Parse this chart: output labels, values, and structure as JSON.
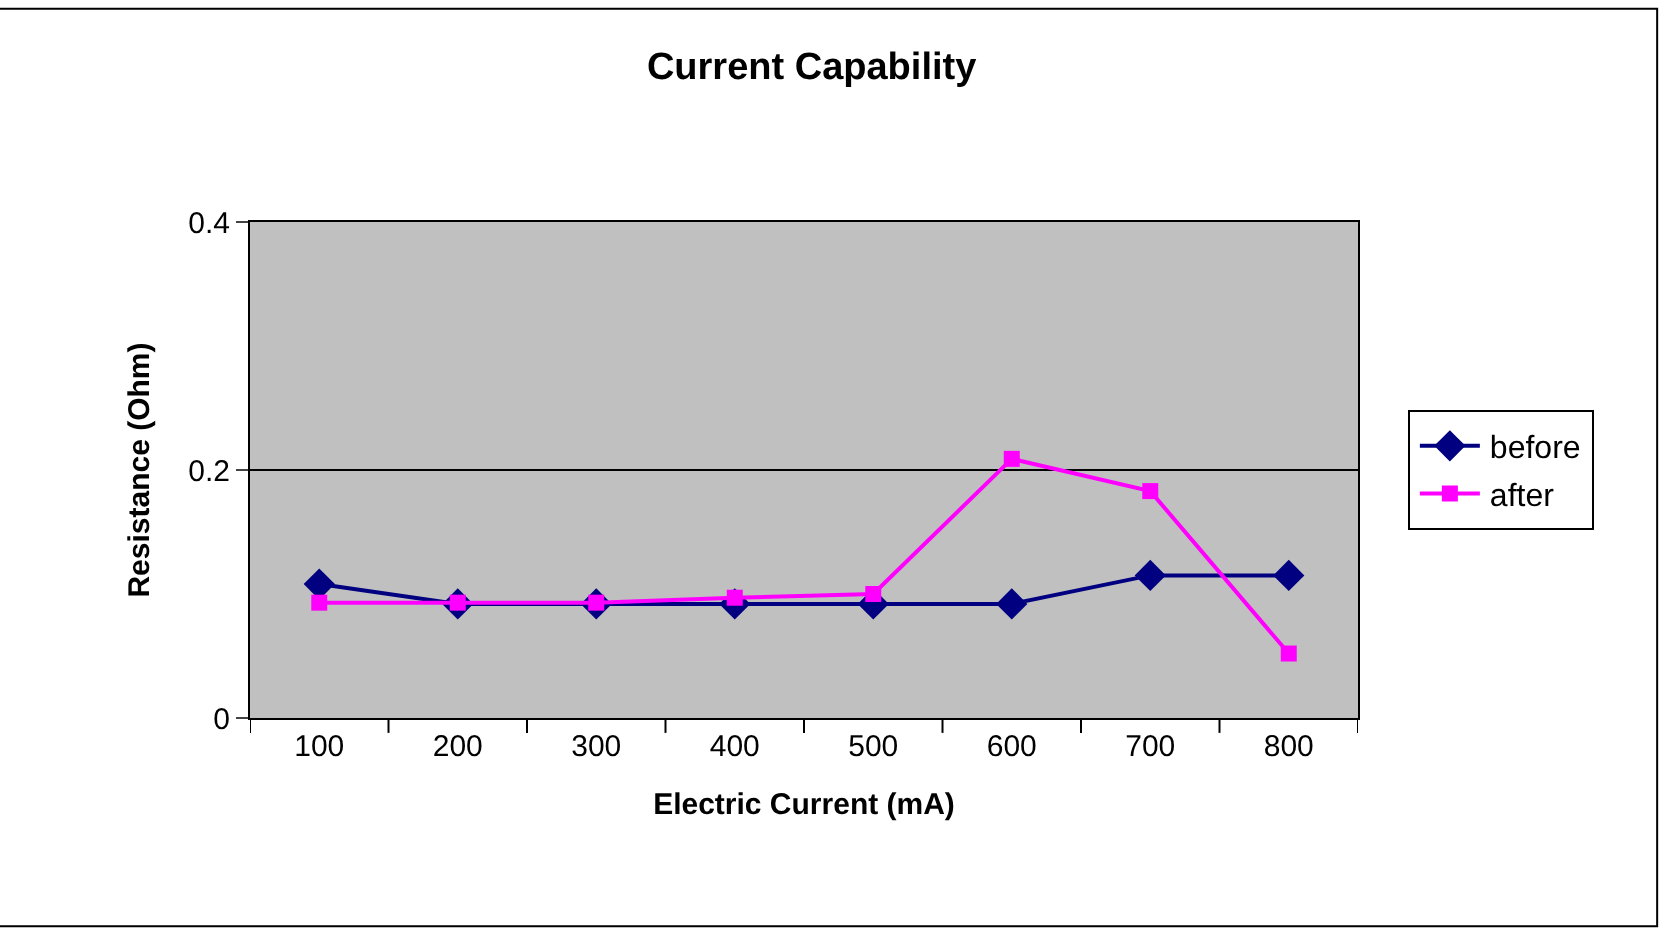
{
  "chart_data": {
    "type": "line",
    "title": "Current Capability",
    "xlabel": "Electric Current (mA)",
    "ylabel": "Resistance (Ohm)",
    "categories": [
      "100",
      "200",
      "300",
      "400",
      "500",
      "600",
      "700",
      "800"
    ],
    "series": [
      {
        "name": "before",
        "color": "#000080",
        "marker": "diamond",
        "values": [
          0.108,
          0.092,
          0.092,
          0.092,
          0.092,
          0.092,
          0.115,
          0.115
        ]
      },
      {
        "name": "after",
        "color": "#ff00ff",
        "marker": "square",
        "values": [
          0.093,
          0.093,
          0.093,
          0.097,
          0.1,
          0.209,
          0.183,
          0.052
        ]
      }
    ],
    "ylim": [
      0,
      0.4
    ],
    "yticks": [
      0,
      0.2,
      0.4
    ],
    "grid": "y",
    "legend": "right",
    "line_style": "solid"
  }
}
